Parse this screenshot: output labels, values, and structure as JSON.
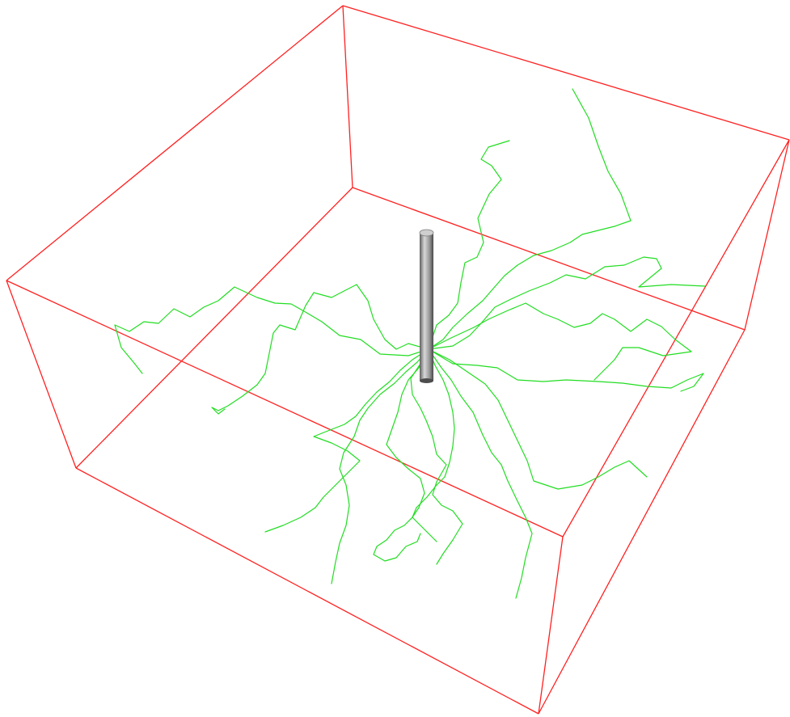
{
  "scene": {
    "background_color": "#ffffff",
    "box_color": "#ff2020",
    "walk_color": "#22dd22",
    "rod_color": "#8c8c8c",
    "rod_highlight_color": "#d8d8d8",
    "walk_count": 14
  }
}
